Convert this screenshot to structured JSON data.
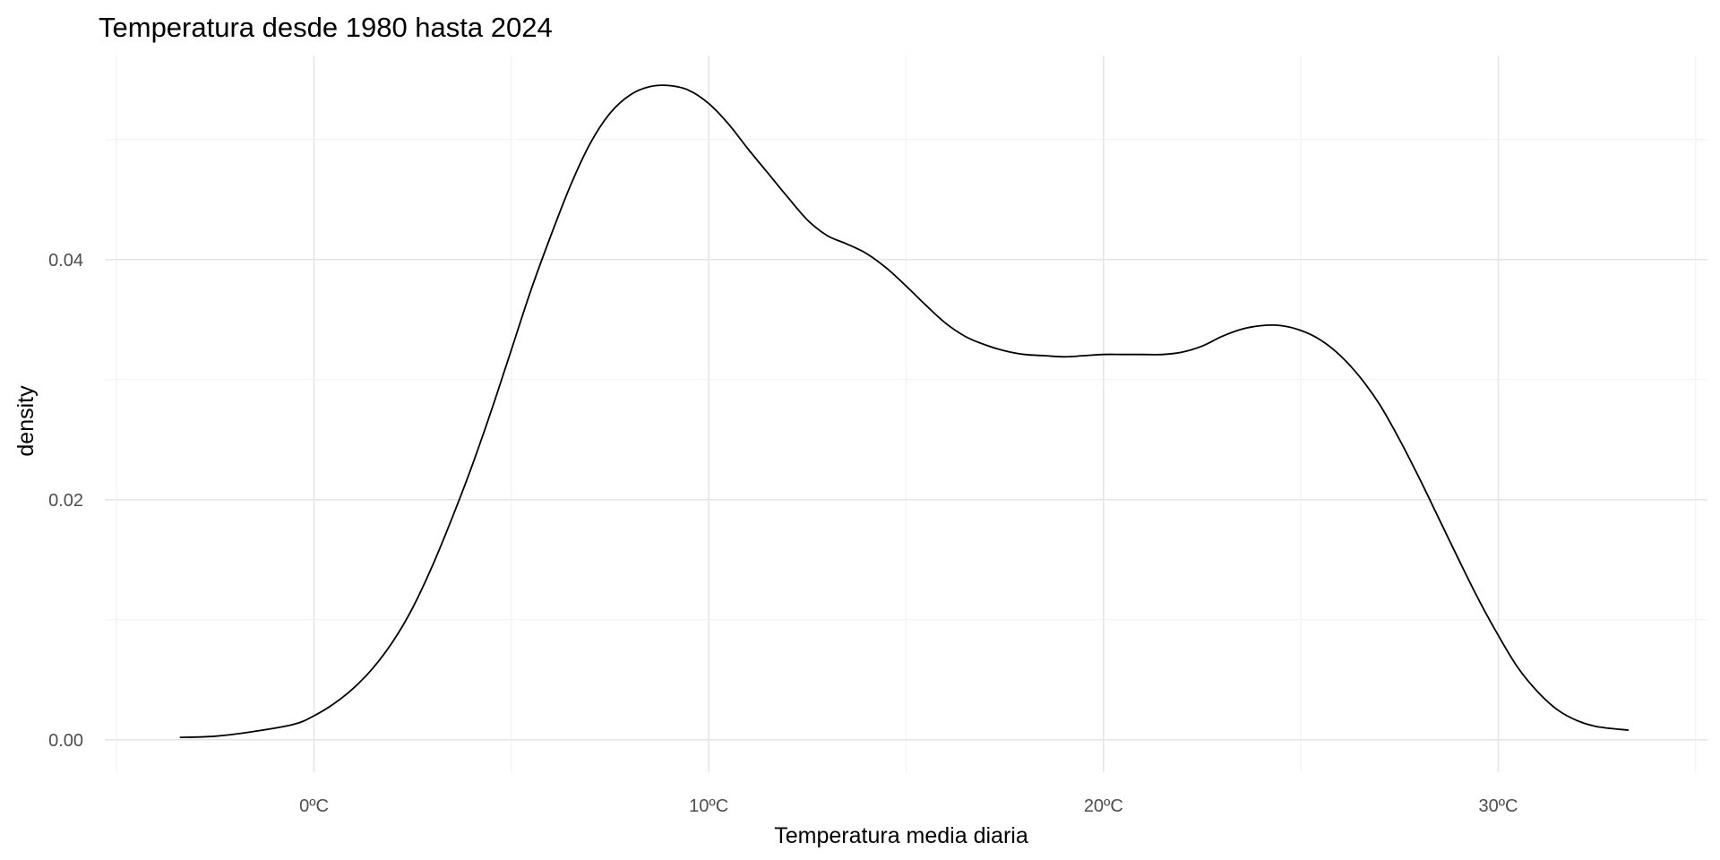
{
  "chart_data": {
    "type": "line",
    "title": "Temperatura desde 1980 hasta 2024",
    "xlabel": "Temperatura media diaria",
    "ylabel": "density",
    "xlim": [
      -5.3,
      35.3
    ],
    "ylim": [
      -0.0027,
      0.057
    ],
    "x_ticks": [
      0,
      10,
      20,
      30
    ],
    "x_tick_labels": [
      "0ºC",
      "10ºC",
      "20ºC",
      "30ºC"
    ],
    "x_minor_ticks": [
      -5,
      5,
      15,
      25,
      35
    ],
    "y_ticks": [
      0.0,
      0.02,
      0.04
    ],
    "y_tick_labels": [
      "0.00",
      "0.02",
      "0.04"
    ],
    "y_minor_ticks": [
      0.01,
      0.03,
      0.05
    ],
    "grid": true,
    "series": [
      {
        "points": [
          [
            -3.4,
            0.0002
          ],
          [
            -2.5,
            0.0003
          ],
          [
            -1.5,
            0.0007
          ],
          [
            -0.5,
            0.0013
          ],
          [
            0.0,
            0.002
          ],
          [
            0.5,
            0.003
          ],
          [
            1.0,
            0.0043
          ],
          [
            1.5,
            0.006
          ],
          [
            2.0,
            0.0082
          ],
          [
            2.5,
            0.011
          ],
          [
            3.0,
            0.0145
          ],
          [
            3.5,
            0.0185
          ],
          [
            4.0,
            0.0228
          ],
          [
            4.5,
            0.0275
          ],
          [
            5.0,
            0.0325
          ],
          [
            5.5,
            0.0375
          ],
          [
            6.0,
            0.042
          ],
          [
            6.5,
            0.0462
          ],
          [
            7.0,
            0.0497
          ],
          [
            7.5,
            0.0522
          ],
          [
            8.0,
            0.0537
          ],
          [
            8.5,
            0.0544
          ],
          [
            9.0,
            0.0545
          ],
          [
            9.5,
            0.0541
          ],
          [
            10.0,
            0.053
          ],
          [
            10.5,
            0.0513
          ],
          [
            11.0,
            0.0492
          ],
          [
            11.5,
            0.0472
          ],
          [
            12.0,
            0.0452
          ],
          [
            12.5,
            0.0433
          ],
          [
            13.0,
            0.042
          ],
          [
            13.5,
            0.0413
          ],
          [
            14.0,
            0.0405
          ],
          [
            14.5,
            0.0393
          ],
          [
            15.0,
            0.0378
          ],
          [
            15.5,
            0.0362
          ],
          [
            16.0,
            0.0347
          ],
          [
            16.5,
            0.0336
          ],
          [
            17.0,
            0.0329
          ],
          [
            17.5,
            0.0324
          ],
          [
            18.0,
            0.0321
          ],
          [
            18.5,
            0.032
          ],
          [
            19.0,
            0.0319
          ],
          [
            19.5,
            0.032
          ],
          [
            20.0,
            0.0321
          ],
          [
            20.5,
            0.0321
          ],
          [
            21.0,
            0.0321
          ],
          [
            21.5,
            0.0321
          ],
          [
            22.0,
            0.0323
          ],
          [
            22.5,
            0.0328
          ],
          [
            23.0,
            0.0336
          ],
          [
            23.5,
            0.0342
          ],
          [
            24.0,
            0.0345
          ],
          [
            24.5,
            0.0345
          ],
          [
            25.0,
            0.0341
          ],
          [
            25.5,
            0.0333
          ],
          [
            26.0,
            0.032
          ],
          [
            26.5,
            0.0302
          ],
          [
            27.0,
            0.0279
          ],
          [
            27.5,
            0.025
          ],
          [
            28.0,
            0.0218
          ],
          [
            28.5,
            0.0184
          ],
          [
            29.0,
            0.015
          ],
          [
            29.5,
            0.0117
          ],
          [
            30.0,
            0.0087
          ],
          [
            30.5,
            0.006
          ],
          [
            31.0,
            0.004
          ],
          [
            31.5,
            0.0025
          ],
          [
            32.0,
            0.0016
          ],
          [
            32.5,
            0.0011
          ],
          [
            33.3,
            0.0008
          ]
        ]
      }
    ]
  }
}
